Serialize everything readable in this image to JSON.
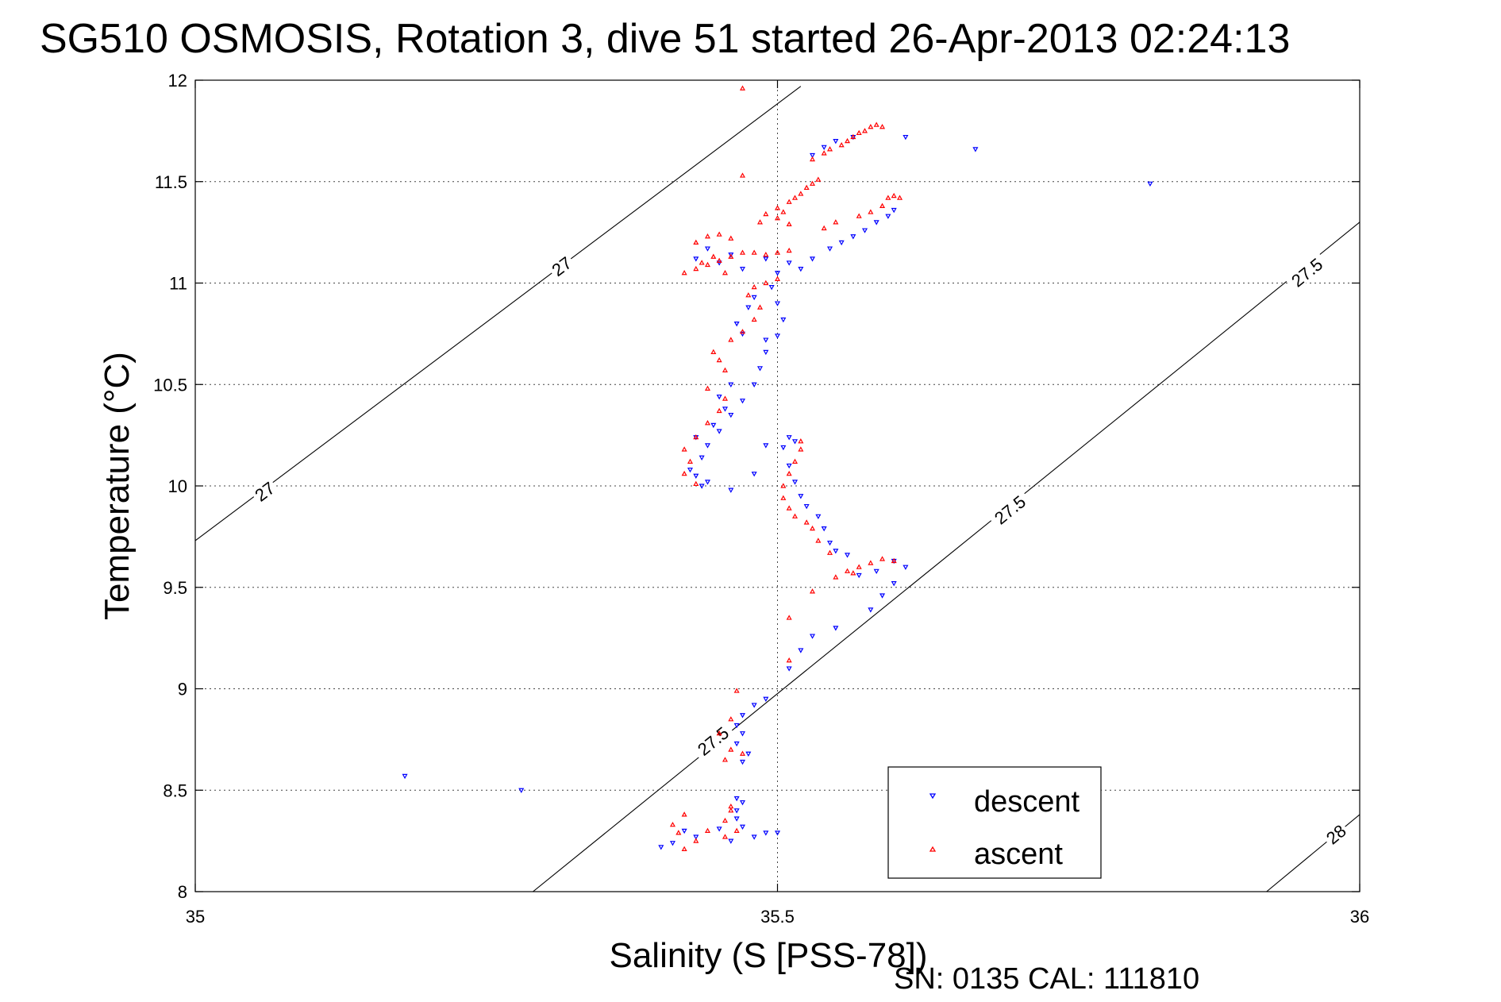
{
  "chart_data": {
    "type": "scatter",
    "title": "SG510 OSMOSIS, Rotation 3, dive 51 started 26-Apr-2013 02:24:13",
    "xlabel": "Salinity (S [PSS-78])",
    "ylabel": "Temperature (°C)",
    "footer": "SN: 0135  CAL: 111810",
    "xlim": [
      35,
      36
    ],
    "ylim": [
      8,
      12
    ],
    "xticks": [
      35,
      35.5,
      36
    ],
    "xtick_labels": [
      "35",
      "35.5",
      "36"
    ],
    "yticks": [
      8,
      8.5,
      9,
      9.5,
      10,
      10.5,
      11,
      11.5,
      12
    ],
    "ytick_labels": [
      "8",
      "8.5",
      "9",
      "9.5",
      "10",
      "10.5",
      "11",
      "11.5",
      "12"
    ],
    "grid": true,
    "legend_position": "bottom-right",
    "density_contours": [
      {
        "value": "27",
        "points": [
          [
            35.0,
            9.73
          ],
          [
            35.52,
            11.97
          ]
        ],
        "labels": [
          {
            "x": 35.06,
            "y": 9.97
          },
          {
            "x": 35.315,
            "y": 11.08
          }
        ]
      },
      {
        "value": "27.5",
        "points": [
          [
            35.29,
            8.0
          ],
          [
            36.0,
            11.3
          ]
        ],
        "labels": [
          {
            "x": 35.445,
            "y": 8.74
          },
          {
            "x": 35.7,
            "y": 9.88
          },
          {
            "x": 35.955,
            "y": 11.05
          }
        ]
      },
      {
        "value": "28",
        "points": [
          [
            35.92,
            8.0
          ],
          [
            36.0,
            8.38
          ]
        ],
        "labels": [
          {
            "x": 35.98,
            "y": 8.28
          }
        ]
      }
    ],
    "series": [
      {
        "name": "descent",
        "color": "#0000ff",
        "marker": "triangle-down",
        "points": [
          [
            35.46,
            8.25
          ],
          [
            35.48,
            8.27
          ],
          [
            35.49,
            8.29
          ],
          [
            35.5,
            8.29
          ],
          [
            35.47,
            8.32
          ],
          [
            35.465,
            8.36
          ],
          [
            35.465,
            8.4
          ],
          [
            35.47,
            8.44
          ],
          [
            35.465,
            8.46
          ],
          [
            35.45,
            8.31
          ],
          [
            35.43,
            8.27
          ],
          [
            35.41,
            8.24
          ],
          [
            35.4,
            8.22
          ],
          [
            35.42,
            8.3
          ],
          [
            35.18,
            8.57
          ],
          [
            35.28,
            8.5
          ],
          [
            35.47,
            8.64
          ],
          [
            35.475,
            8.68
          ],
          [
            35.465,
            8.73
          ],
          [
            35.47,
            8.78
          ],
          [
            35.465,
            8.82
          ],
          [
            35.47,
            8.87
          ],
          [
            35.48,
            8.92
          ],
          [
            35.49,
            8.95
          ],
          [
            35.51,
            9.1
          ],
          [
            35.52,
            9.19
          ],
          [
            35.53,
            9.26
          ],
          [
            35.55,
            9.3
          ],
          [
            35.58,
            9.39
          ],
          [
            35.59,
            9.46
          ],
          [
            35.6,
            9.52
          ],
          [
            35.61,
            9.6
          ],
          [
            35.57,
            9.56
          ],
          [
            35.585,
            9.58
          ],
          [
            35.6,
            9.63
          ],
          [
            35.56,
            9.66
          ],
          [
            35.55,
            9.68
          ],
          [
            35.545,
            9.72
          ],
          [
            35.54,
            9.79
          ],
          [
            35.535,
            9.85
          ],
          [
            35.525,
            9.9
          ],
          [
            35.52,
            9.95
          ],
          [
            35.515,
            10.02
          ],
          [
            35.51,
            10.1
          ],
          [
            35.505,
            10.19
          ],
          [
            35.49,
            10.2
          ],
          [
            35.51,
            10.24
          ],
          [
            35.515,
            10.22
          ],
          [
            35.44,
            10.02
          ],
          [
            35.43,
            10.05
          ],
          [
            35.425,
            10.08
          ],
          [
            35.435,
            10.14
          ],
          [
            35.44,
            10.2
          ],
          [
            35.45,
            10.27
          ],
          [
            35.46,
            10.35
          ],
          [
            35.47,
            10.42
          ],
          [
            35.48,
            10.5
          ],
          [
            35.485,
            10.58
          ],
          [
            35.49,
            10.66
          ],
          [
            35.5,
            10.74
          ],
          [
            35.505,
            10.82
          ],
          [
            35.5,
            10.9
          ],
          [
            35.495,
            10.98
          ],
          [
            35.5,
            11.05
          ],
          [
            35.51,
            11.1
          ],
          [
            35.52,
            11.07
          ],
          [
            35.53,
            11.12
          ],
          [
            35.545,
            11.17
          ],
          [
            35.555,
            11.2
          ],
          [
            35.565,
            11.23
          ],
          [
            35.575,
            11.26
          ],
          [
            35.585,
            11.3
          ],
          [
            35.595,
            11.33
          ],
          [
            35.6,
            11.36
          ],
          [
            35.49,
            11.12
          ],
          [
            35.48,
            10.93
          ],
          [
            35.475,
            10.88
          ],
          [
            35.465,
            10.8
          ],
          [
            35.47,
            10.75
          ],
          [
            35.49,
            10.72
          ],
          [
            35.46,
            11.14
          ],
          [
            35.45,
            11.1
          ],
          [
            35.44,
            11.17
          ],
          [
            35.43,
            11.12
          ],
          [
            35.47,
            11.07
          ],
          [
            35.53,
            11.63
          ],
          [
            35.54,
            11.67
          ],
          [
            35.55,
            11.7
          ],
          [
            35.565,
            11.72
          ],
          [
            35.61,
            11.72
          ],
          [
            35.67,
            11.66
          ],
          [
            35.82,
            11.49
          ],
          [
            35.45,
            10.44
          ],
          [
            35.46,
            10.5
          ],
          [
            35.455,
            10.38
          ],
          [
            35.445,
            10.3
          ],
          [
            35.43,
            10.24
          ],
          [
            35.435,
            10.0
          ],
          [
            35.48,
            10.06
          ],
          [
            35.46,
            9.98
          ]
        ]
      },
      {
        "name": "ascent",
        "color": "#ff0000",
        "marker": "triangle-up",
        "points": [
          [
            35.42,
            8.21
          ],
          [
            35.43,
            8.25
          ],
          [
            35.415,
            8.29
          ],
          [
            35.41,
            8.33
          ],
          [
            35.42,
            8.38
          ],
          [
            35.44,
            8.3
          ],
          [
            35.455,
            8.35
          ],
          [
            35.46,
            8.42
          ],
          [
            35.46,
            8.4
          ],
          [
            35.465,
            8.3
          ],
          [
            35.455,
            8.27
          ],
          [
            35.455,
            8.65
          ],
          [
            35.46,
            8.7
          ],
          [
            35.45,
            8.78
          ],
          [
            35.46,
            8.85
          ],
          [
            35.465,
            8.99
          ],
          [
            35.47,
            8.68
          ],
          [
            35.51,
            9.14
          ],
          [
            35.51,
            9.35
          ],
          [
            35.53,
            9.48
          ],
          [
            35.55,
            9.55
          ],
          [
            35.56,
            9.58
          ],
          [
            35.57,
            9.6
          ],
          [
            35.58,
            9.62
          ],
          [
            35.59,
            9.64
          ],
          [
            35.6,
            9.63
          ],
          [
            35.565,
            9.57
          ],
          [
            35.545,
            9.67
          ],
          [
            35.535,
            9.73
          ],
          [
            35.53,
            9.79
          ],
          [
            35.525,
            9.82
          ],
          [
            35.515,
            9.85
          ],
          [
            35.51,
            9.89
          ],
          [
            35.505,
            9.94
          ],
          [
            35.505,
            10.0
          ],
          [
            35.51,
            10.06
          ],
          [
            35.515,
            10.12
          ],
          [
            35.52,
            10.18
          ],
          [
            35.52,
            10.22
          ],
          [
            35.43,
            10.01
          ],
          [
            35.42,
            10.06
          ],
          [
            35.425,
            10.12
          ],
          [
            35.42,
            10.18
          ],
          [
            35.43,
            10.24
          ],
          [
            35.44,
            10.31
          ],
          [
            35.45,
            10.37
          ],
          [
            35.455,
            10.43
          ],
          [
            35.44,
            10.48
          ],
          [
            35.455,
            10.57
          ],
          [
            35.45,
            10.62
          ],
          [
            35.445,
            10.66
          ],
          [
            35.46,
            10.72
          ],
          [
            35.47,
            10.76
          ],
          [
            35.48,
            10.82
          ],
          [
            35.485,
            10.88
          ],
          [
            35.475,
            10.94
          ],
          [
            35.48,
            10.98
          ],
          [
            35.49,
            11.0
          ],
          [
            35.5,
            11.02
          ],
          [
            35.47,
            11.96
          ],
          [
            35.42,
            11.05
          ],
          [
            35.43,
            11.07
          ],
          [
            35.44,
            11.09
          ],
          [
            35.45,
            11.11
          ],
          [
            35.46,
            11.13
          ],
          [
            35.47,
            11.15
          ],
          [
            35.48,
            11.15
          ],
          [
            35.49,
            11.14
          ],
          [
            35.5,
            11.15
          ],
          [
            35.51,
            11.16
          ],
          [
            35.445,
            11.13
          ],
          [
            35.435,
            11.1
          ],
          [
            35.455,
            11.05
          ],
          [
            35.43,
            11.2
          ],
          [
            35.44,
            11.23
          ],
          [
            35.45,
            11.24
          ],
          [
            35.46,
            11.22
          ],
          [
            35.485,
            11.3
          ],
          [
            35.49,
            11.34
          ],
          [
            35.5,
            11.37
          ],
          [
            35.505,
            11.35
          ],
          [
            35.51,
            11.4
          ],
          [
            35.515,
            11.42
          ],
          [
            35.52,
            11.44
          ],
          [
            35.525,
            11.47
          ],
          [
            35.53,
            11.49
          ],
          [
            35.535,
            11.51
          ],
          [
            35.47,
            11.53
          ],
          [
            35.53,
            11.61
          ],
          [
            35.54,
            11.64
          ],
          [
            35.545,
            11.66
          ],
          [
            35.555,
            11.68
          ],
          [
            35.56,
            11.7
          ],
          [
            35.565,
            11.72
          ],
          [
            35.57,
            11.74
          ],
          [
            35.575,
            11.75
          ],
          [
            35.58,
            11.77
          ],
          [
            35.585,
            11.78
          ],
          [
            35.59,
            11.77
          ],
          [
            35.5,
            11.32
          ],
          [
            35.51,
            11.29
          ],
          [
            35.54,
            11.27
          ],
          [
            35.55,
            11.3
          ],
          [
            35.57,
            11.33
          ],
          [
            35.58,
            11.35
          ],
          [
            35.59,
            11.38
          ],
          [
            35.595,
            11.42
          ],
          [
            35.6,
            11.43
          ],
          [
            35.605,
            11.42
          ]
        ]
      }
    ]
  }
}
